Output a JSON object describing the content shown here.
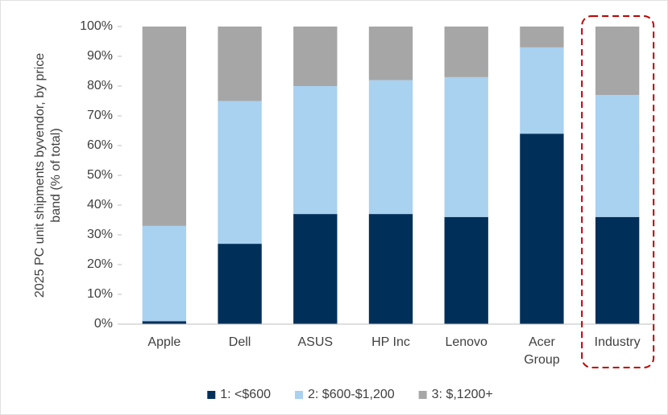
{
  "chart_data": {
    "type": "stacked_bar",
    "ylabel": "2025 PC unit shipments byvendor, by price band (% of total)",
    "categories": [
      "Apple",
      "Dell",
      "ASUS",
      "HP Inc",
      "Lenovo",
      "Acer Group",
      "Industry"
    ],
    "series": [
      {
        "name": "1: <$600",
        "color": "#00305a",
        "values": [
          1,
          27,
          37,
          37,
          36,
          64,
          36
        ]
      },
      {
        "name": "2: $600-$1,200",
        "color": "#a9d1f0",
        "values": [
          32,
          48,
          43,
          45,
          47,
          29,
          41
        ]
      },
      {
        "name": "3: $,1200+",
        "color": "#a6a6a6",
        "values": [
          67,
          25,
          20,
          18,
          17,
          7,
          23
        ]
      }
    ],
    "ylim": [
      0,
      100
    ],
    "yticks": [
      {
        "value": 0,
        "label": "0%"
      },
      {
        "value": 10,
        "label": "10%"
      },
      {
        "value": 20,
        "label": "20%"
      },
      {
        "value": 30,
        "label": "30%"
      },
      {
        "value": 40,
        "label": "40%"
      },
      {
        "value": 50,
        "label": "50%"
      },
      {
        "value": 60,
        "label": "60%"
      },
      {
        "value": 70,
        "label": "70%"
      },
      {
        "value": 80,
        "label": "80%"
      },
      {
        "value": 90,
        "label": "90%"
      },
      {
        "value": 100,
        "label": "100%"
      }
    ],
    "grid": false,
    "legend": "bottom"
  }
}
